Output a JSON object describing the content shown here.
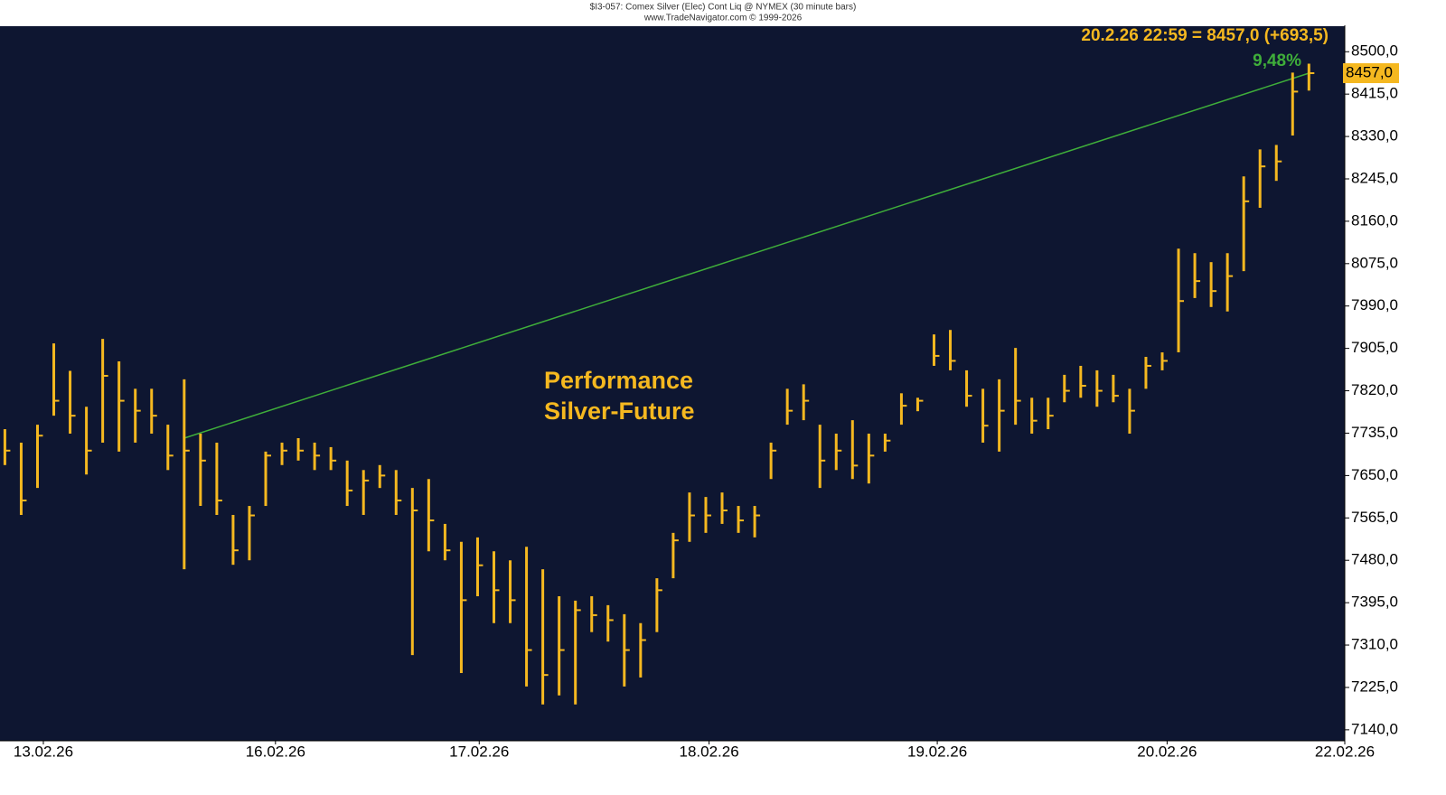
{
  "chart_data": {
    "type": "ohlc",
    "title": "$I3-057: Comex Silver (Elec) Cont Liq @ NYMEX (30 minute bars)",
    "subtitle": "www.TradeNavigator.com © 1999-2026",
    "annotation": [
      "Performance",
      "Silver-Future"
    ],
    "last_info": "20.2.26 22:59 = 8457,0 (+693,5)",
    "last_price": {
      "value": 8457,
      "label": "8457,0"
    },
    "performance_label": "9,48%",
    "color": "#f5b820",
    "background": "#0e1631",
    "x": [
      0,
      1,
      2,
      3,
      4,
      5,
      6,
      7,
      8,
      9,
      10,
      11,
      12,
      13,
      14,
      15,
      16,
      17,
      18,
      19,
      20,
      21,
      22,
      23,
      24,
      25,
      26,
      27,
      28,
      29,
      30,
      31,
      32,
      33,
      34,
      35,
      36,
      37,
      38,
      39,
      40,
      41,
      42,
      43,
      44,
      45,
      46,
      47,
      48,
      49,
      50,
      51,
      52,
      53,
      54,
      55,
      56,
      57,
      58,
      59,
      60,
      61,
      62,
      63,
      64,
      65,
      66,
      67,
      68,
      69,
      70,
      71,
      72,
      73,
      74,
      75,
      76,
      77,
      78,
      79,
      80
    ],
    "high": [
      7743,
      7716,
      7752,
      7915,
      7860,
      7788,
      7924,
      7879,
      7824,
      7824,
      7752,
      7843,
      7734,
      7716,
      7571,
      7589,
      7698,
      7716,
      7725,
      7716,
      7707,
      7680,
      7661,
      7671,
      7661,
      7625,
      7643,
      7553,
      7517,
      7526,
      7498,
      7480,
      7507,
      7462,
      7408,
      7399,
      7408,
      7390,
      7372,
      7354,
      7444,
      7535,
      7616,
      7607,
      7616,
      7589,
      7589,
      7716,
      7824,
      7833,
      7752,
      7734,
      7761,
      7734,
      7734,
      7815,
      7806,
      7933,
      7942,
      7861,
      7824,
      7843,
      7906,
      7806,
      7806,
      7852,
      7870,
      7861,
      7852,
      7824,
      7888,
      7897,
      8105,
      8096,
      8078,
      8096,
      8250,
      8304,
      8313,
      8458,
      8476
    ],
    "low": [
      7671,
      7571,
      7625,
      7770,
      7734,
      7652,
      7716,
      7698,
      7716,
      7734,
      7661,
      7462,
      7589,
      7571,
      7471,
      7480,
      7589,
      7671,
      7680,
      7661,
      7661,
      7589,
      7571,
      7625,
      7571,
      7290,
      7498,
      7480,
      7254,
      7408,
      7354,
      7354,
      7227,
      7191,
      7209,
      7191,
      7336,
      7317,
      7227,
      7245,
      7336,
      7444,
      7517,
      7535,
      7553,
      7535,
      7526,
      7643,
      7752,
      7761,
      7625,
      7661,
      7643,
      7634,
      7698,
      7752,
      7779,
      7870,
      7861,
      7788,
      7716,
      7698,
      7752,
      7734,
      7743,
      7797,
      7806,
      7788,
      7797,
      7734,
      7824,
      7861,
      7897,
      8006,
      7988,
      7979,
      8060,
      8187,
      8241,
      8332,
      8422
    ],
    "close": [
      7700,
      7600,
      7730,
      7800,
      7770,
      7700,
      7850,
      7800,
      7780,
      7770,
      7690,
      7700,
      7680,
      7600,
      7500,
      7570,
      7690,
      7700,
      7700,
      7690,
      7680,
      7620,
      7640,
      7650,
      7600,
      7580,
      7560,
      7500,
      7400,
      7470,
      7420,
      7400,
      7300,
      7250,
      7300,
      7380,
      7370,
      7360,
      7300,
      7320,
      7420,
      7520,
      7570,
      7570,
      7580,
      7560,
      7570,
      7700,
      7780,
      7800,
      7680,
      7700,
      7670,
      7690,
      7720,
      7790,
      7800,
      7890,
      7880,
      7810,
      7750,
      7780,
      7800,
      7760,
      7770,
      7820,
      7830,
      7820,
      7810,
      7780,
      7870,
      7880,
      8000,
      8040,
      8020,
      8050,
      8200,
      8270,
      8280,
      8420,
      8457
    ],
    "trendline": {
      "x": [
        11,
        80
      ],
      "y": [
        7725,
        8457
      ],
      "color": "#3fae3a"
    },
    "xlim": [
      -0.3,
      82.2
    ],
    "xticks": [
      {
        "value": 2.36,
        "label": "13.02.26"
      },
      {
        "value": 16.6,
        "label": "16.02.26"
      },
      {
        "value": 29.1,
        "label": "17.02.26"
      },
      {
        "value": 43.2,
        "label": "18.02.26"
      },
      {
        "value": 57.2,
        "label": "19.02.26"
      },
      {
        "value": 71.3,
        "label": "20.02.26"
      },
      {
        "value": 82.2,
        "label": "22.02.26"
      }
    ],
    "ylim": [
      7118,
      8553
    ],
    "yticks": [
      {
        "value": 7140,
        "label": "7140,0"
      },
      {
        "value": 7225,
        "label": "7225,0"
      },
      {
        "value": 7310,
        "label": "7310,0"
      },
      {
        "value": 7395,
        "label": "7395,0"
      },
      {
        "value": 7480,
        "label": "7480,0"
      },
      {
        "value": 7565,
        "label": "7565,0"
      },
      {
        "value": 7650,
        "label": "7650,0"
      },
      {
        "value": 7735,
        "label": "7735,0"
      },
      {
        "value": 7820,
        "label": "7820,0"
      },
      {
        "value": 7905,
        "label": "7905,0"
      },
      {
        "value": 7990,
        "label": "7990,0"
      },
      {
        "value": 8075,
        "label": "8075,0"
      },
      {
        "value": 8160,
        "label": "8160,0"
      },
      {
        "value": 8245,
        "label": "8245,0"
      },
      {
        "value": 8330,
        "label": "8330,0"
      },
      {
        "value": 8415,
        "label": "8415,0"
      },
      {
        "value": 8500,
        "label": "8500,0"
      }
    ]
  }
}
